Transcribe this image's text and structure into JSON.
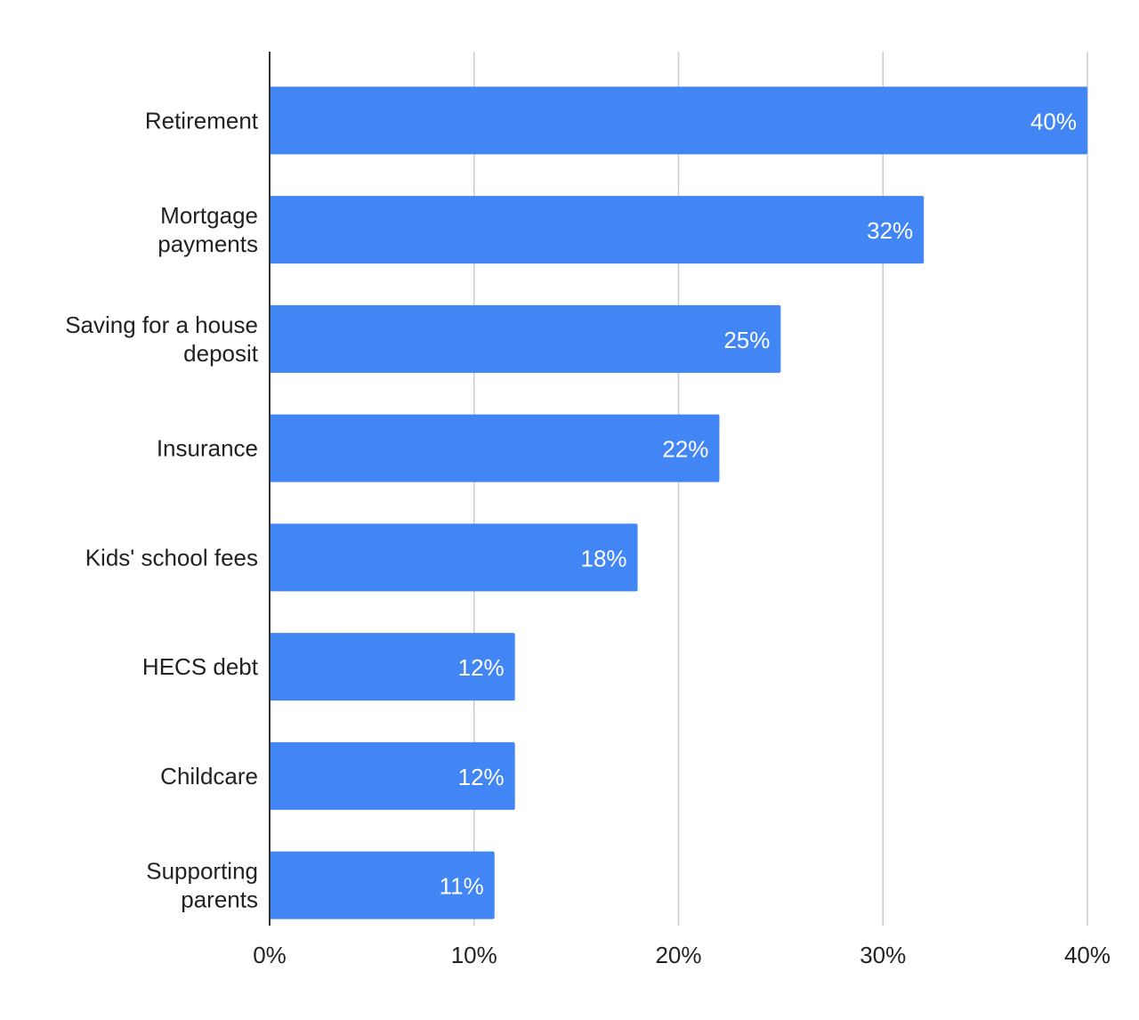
{
  "chart_data": {
    "type": "bar",
    "orientation": "horizontal",
    "title": "",
    "xlabel": "",
    "ylabel": "",
    "categories": [
      [
        "Retirement"
      ],
      [
        "Mortgage",
        "payments"
      ],
      [
        "Saving for a house",
        "deposit"
      ],
      [
        "Insurance"
      ],
      [
        "Kids' school fees"
      ],
      [
        "HECS debt"
      ],
      [
        "Childcare"
      ],
      [
        "Supporting",
        "parents"
      ]
    ],
    "values": [
      40,
      32,
      25,
      22,
      18,
      12,
      12,
      11
    ],
    "data_labels": [
      "40%",
      "32%",
      "25%",
      "22%",
      "18%",
      "12%",
      "12%",
      "11%"
    ],
    "xlim": [
      0,
      40
    ],
    "x_ticks": [
      0,
      10,
      20,
      30,
      40
    ],
    "x_tick_labels": [
      "0%",
      "10%",
      "20%",
      "30%",
      "40%"
    ],
    "grid": "vertical",
    "legend": "none",
    "colors": {
      "bar": "#4285f4",
      "axis": "#333333",
      "grid": "#cccccc",
      "data_label": "#ffffff",
      "text": "#222222"
    }
  }
}
